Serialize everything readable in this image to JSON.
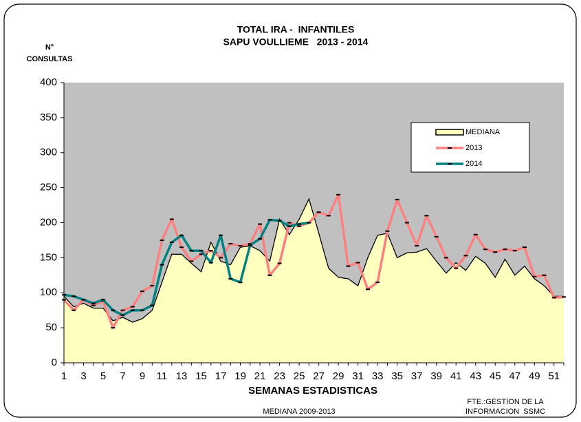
{
  "chart_data": {
    "type": "line",
    "title": "TOTAL IRA -  INFANTILES",
    "subtitle": "SAPU VOULLIEME   2013 - 2014",
    "y_label": [
      "N°",
      "CONSULTAS"
    ],
    "x_label": "SEMANAS ESTADISTICAS",
    "note": "MEDIANA 2009-2013",
    "source": [
      "FTE.:GESTION DE LA",
      "INFORMACION  SSMC"
    ],
    "categories": [
      1,
      null,
      3,
      null,
      5,
      null,
      7,
      null,
      9,
      null,
      11,
      null,
      13,
      null,
      15,
      null,
      17,
      null,
      19,
      null,
      21,
      null,
      23,
      null,
      25,
      null,
      27,
      null,
      29,
      null,
      31,
      null,
      33,
      null,
      35,
      null,
      37,
      null,
      39,
      null,
      41,
      null,
      43,
      null,
      45,
      null,
      47,
      null,
      49,
      null,
      51,
      null
    ],
    "ylim": [
      0,
      400
    ],
    "yticks": [
      0,
      50,
      100,
      150,
      200,
      250,
      300,
      350,
      400
    ],
    "plot_background": "#c0c0c0",
    "legend": "upper right",
    "series": [
      {
        "name": "MEDIANA",
        "style": "area",
        "color": "#ffffc0",
        "line_color": "#000000",
        "values": [
          95,
          80,
          85,
          78,
          78,
          60,
          65,
          58,
          63,
          75,
          115,
          155,
          155,
          142,
          130,
          172,
          145,
          140,
          165,
          167,
          160,
          145,
          205,
          183,
          205,
          234,
          185,
          135,
          122,
          120,
          110,
          150,
          182,
          185,
          150,
          157,
          158,
          163,
          145,
          128,
          143,
          132,
          152,
          142,
          122,
          148,
          125,
          138,
          120,
          110,
          95,
          95
        ]
      },
      {
        "name": "2013",
        "style": "line",
        "color": "#ff8080",
        "values": [
          90,
          75,
          90,
          82,
          88,
          50,
          75,
          80,
          102,
          110,
          175,
          205,
          165,
          145,
          155,
          160,
          150,
          170,
          167,
          170,
          198,
          125,
          142,
          200,
          195,
          200,
          215,
          210,
          240,
          138,
          143,
          105,
          115,
          188,
          233,
          200,
          167,
          210,
          180,
          150,
          135,
          153,
          183,
          162,
          158,
          162,
          160,
          165,
          123,
          125,
          93,
          94
        ]
      },
      {
        "name": "2014",
        "style": "line",
        "color": "#008080",
        "values": [
          97,
          95,
          90,
          85,
          90,
          75,
          68,
          75,
          75,
          82,
          140,
          172,
          182,
          160,
          160,
          143,
          182,
          120,
          115,
          168,
          177,
          204,
          203,
          195,
          198,
          200,
          null,
          null,
          null,
          null,
          null,
          null,
          null,
          null,
          null,
          null,
          null,
          null,
          null,
          null,
          null,
          null,
          null,
          null,
          null,
          null,
          null,
          null,
          null,
          null,
          null,
          null
        ]
      }
    ]
  }
}
